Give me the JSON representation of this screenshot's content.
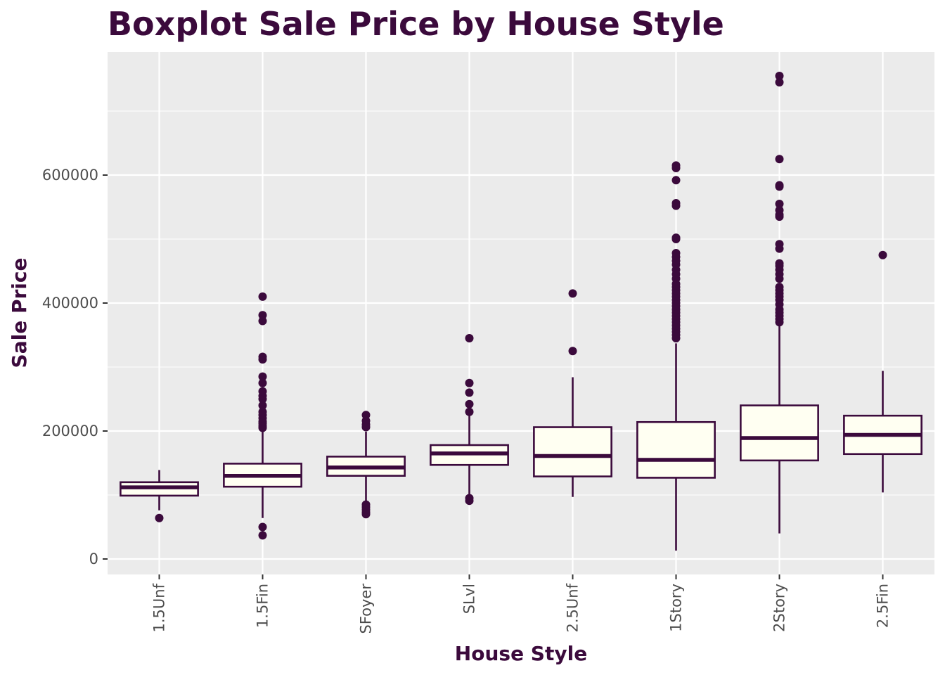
{
  "colors": {
    "accent": "#3b0a3c",
    "box_fill": "#fffff2",
    "panel": "#ebebeb",
    "grid": "#ffffff",
    "tick_text": "#4d4d4d"
  },
  "chart_data": {
    "type": "boxplot",
    "title": "Boxplot Sale Price by House Style",
    "xlabel": "House Style",
    "ylabel": "Sale Price",
    "ylim": [
      -25000,
      790000
    ],
    "yticks": [
      0,
      200000,
      400000,
      600000
    ],
    "ytick_labels": [
      "0",
      "200000",
      "400000",
      "600000"
    ],
    "grid": true,
    "categories": [
      "1.5Unf",
      "1.5Fin",
      "SFoyer",
      "SLvl",
      "2.5Unf",
      "1Story",
      "2Story",
      "2.5Fin"
    ],
    "boxes": [
      {
        "q1": 99000,
        "median": 112000,
        "q3": 120000,
        "whisker_low": 76000,
        "whisker_high": 139000,
        "outliers": [
          64000
        ]
      },
      {
        "q1": 113000,
        "median": 130000,
        "q3": 149000,
        "whisker_low": 64000,
        "whisker_high": 200000,
        "outliers": [
          37000,
          50000,
          205000,
          208000,
          212000,
          215000,
          220000,
          225000,
          230000,
          240000,
          250000,
          255000,
          262000,
          275000,
          285000,
          312000,
          316000,
          372000,
          381000,
          410000
        ]
      },
      {
        "q1": 130000,
        "median": 143000,
        "q3": 160000,
        "whisker_low": 88000,
        "whisker_high": 199000,
        "outliers": [
          70000,
          73000,
          77000,
          81000,
          85000,
          206000,
          210000,
          216000,
          225000
        ]
      },
      {
        "q1": 147000,
        "median": 165000,
        "q3": 178000,
        "whisker_low": 98000,
        "whisker_high": 225000,
        "outliers": [
          91000,
          95000,
          230000,
          242000,
          260000,
          275000,
          345000
        ]
      },
      {
        "q1": 129000,
        "median": 161000,
        "q3": 206000,
        "whisker_low": 97000,
        "whisker_high": 284000,
        "outliers": [
          325000,
          415000
        ]
      },
      {
        "q1": 127000,
        "median": 155000,
        "q3": 214000,
        "whisker_low": 13000,
        "whisker_high": 337000,
        "outliers": [
          345000,
          350000,
          355000,
          360000,
          365000,
          370000,
          375000,
          380000,
          385000,
          390000,
          395000,
          400000,
          405000,
          410000,
          415000,
          420000,
          425000,
          430000,
          438000,
          445000,
          452000,
          460000,
          466000,
          472000,
          478000,
          500000,
          502000,
          552000,
          556000,
          592000,
          611000,
          615000
        ]
      },
      {
        "q1": 154000,
        "median": 189000,
        "q3": 240000,
        "whisker_low": 40000,
        "whisker_high": 365000,
        "outliers": [
          370000,
          375000,
          380000,
          385000,
          390000,
          398000,
          405000,
          410000,
          415000,
          420000,
          425000,
          438000,
          445000,
          452000,
          458000,
          462000,
          485000,
          492000,
          535000,
          538000,
          545000,
          555000,
          582000,
          584000,
          625000,
          745000,
          755000
        ]
      },
      {
        "q1": 164000,
        "median": 194000,
        "q3": 224000,
        "whisker_low": 104000,
        "whisker_high": 294000,
        "outliers": [
          475000
        ]
      }
    ]
  }
}
